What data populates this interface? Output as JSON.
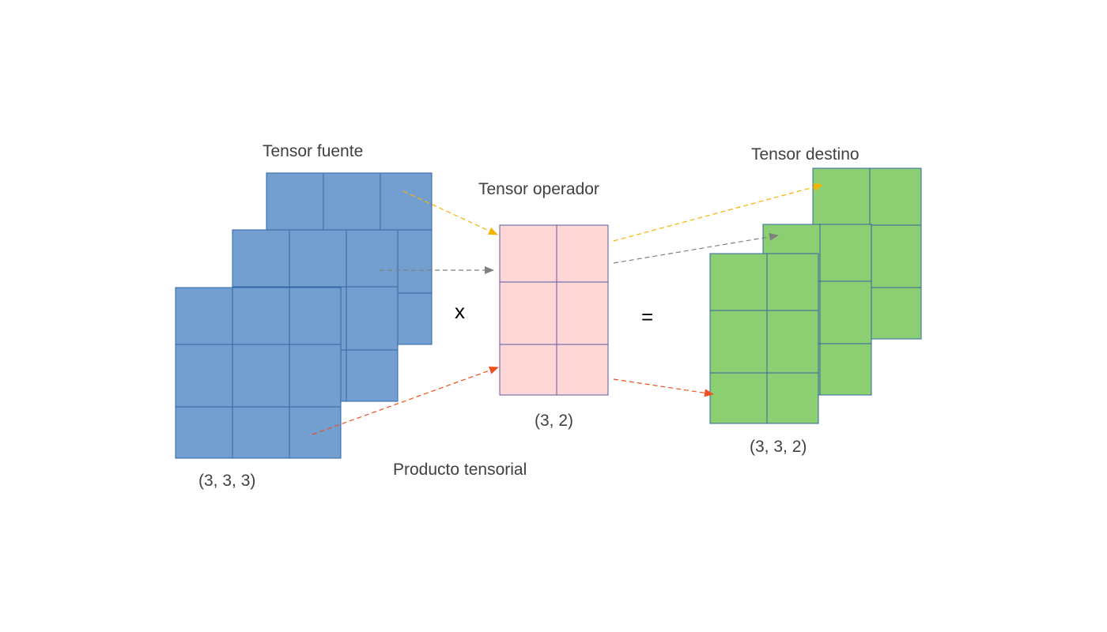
{
  "labels": {
    "source_title": "Tensor fuente",
    "operator_title": "Tensor operador",
    "target_title": "Tensor destino",
    "source_shape": "(3, 3, 3)",
    "operator_shape": "(3, 2)",
    "target_shape": "(3, 3, 2)",
    "product_caption": "Producto tensorial",
    "multiply_symbol": "x",
    "equals_symbol": "="
  },
  "colors": {
    "source_fill": "#729fcf",
    "source_stroke": "#3465a4",
    "operator_fill": "#ffd7d7",
    "operator_stroke": "#5a5a9c",
    "target_fill": "#8ccf72",
    "target_stroke": "#3465a4",
    "arrow_yellow": "#f5b400",
    "arrow_gray": "#808080",
    "arrow_red": "#f24e1e"
  }
}
